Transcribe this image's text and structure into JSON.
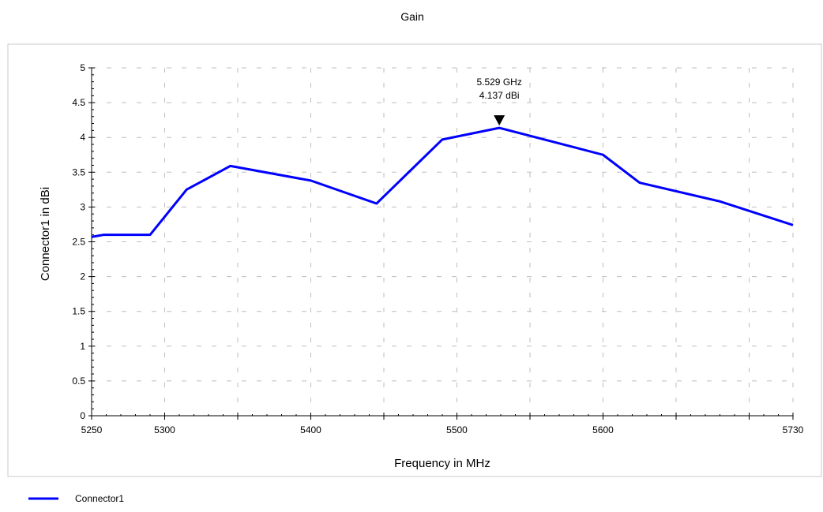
{
  "chart_data": {
    "type": "line",
    "title": "Gain",
    "xlabel": "Frequency in MHz",
    "ylabel": "Connector1 in dBi",
    "xlim": [
      5250,
      5730
    ],
    "ylim": [
      0,
      5
    ],
    "grid": true,
    "legend_position": "bottom-left",
    "x_ticks": [
      5250,
      5300,
      5400,
      5500,
      5600,
      5730
    ],
    "x_tick_labels": [
      "5250",
      "5300",
      "5400",
      "5500",
      "5600",
      "5730"
    ],
    "x_minor_ticks": [
      5350,
      5450,
      5550,
      5650,
      5700
    ],
    "y_ticks": [
      0,
      0.5,
      1,
      1.5,
      2,
      2.5,
      3,
      3.5,
      4,
      4.5,
      5
    ],
    "y_tick_labels": [
      "0",
      "0.5",
      "1",
      "1.5",
      "2",
      "2.5",
      "3",
      "3.5",
      "4",
      "4.5",
      "5"
    ],
    "series": [
      {
        "name": "Connector1",
        "color": "#0000ff",
        "x": [
          5250,
          5258,
          5290,
          5315,
          5345,
          5400,
          5445,
          5490,
          5529,
          5580,
          5600,
          5625,
          5680,
          5730
        ],
        "y": [
          2.57,
          2.6,
          2.6,
          3.25,
          3.59,
          3.38,
          3.05,
          3.97,
          4.137,
          3.86,
          3.75,
          3.35,
          3.08,
          2.74
        ]
      }
    ],
    "annotations": [
      {
        "x": 5529,
        "y": 4.137,
        "text_line1": "5.529 GHz",
        "text_line2": "4.137 dBi",
        "marker": "down-triangle"
      }
    ]
  }
}
